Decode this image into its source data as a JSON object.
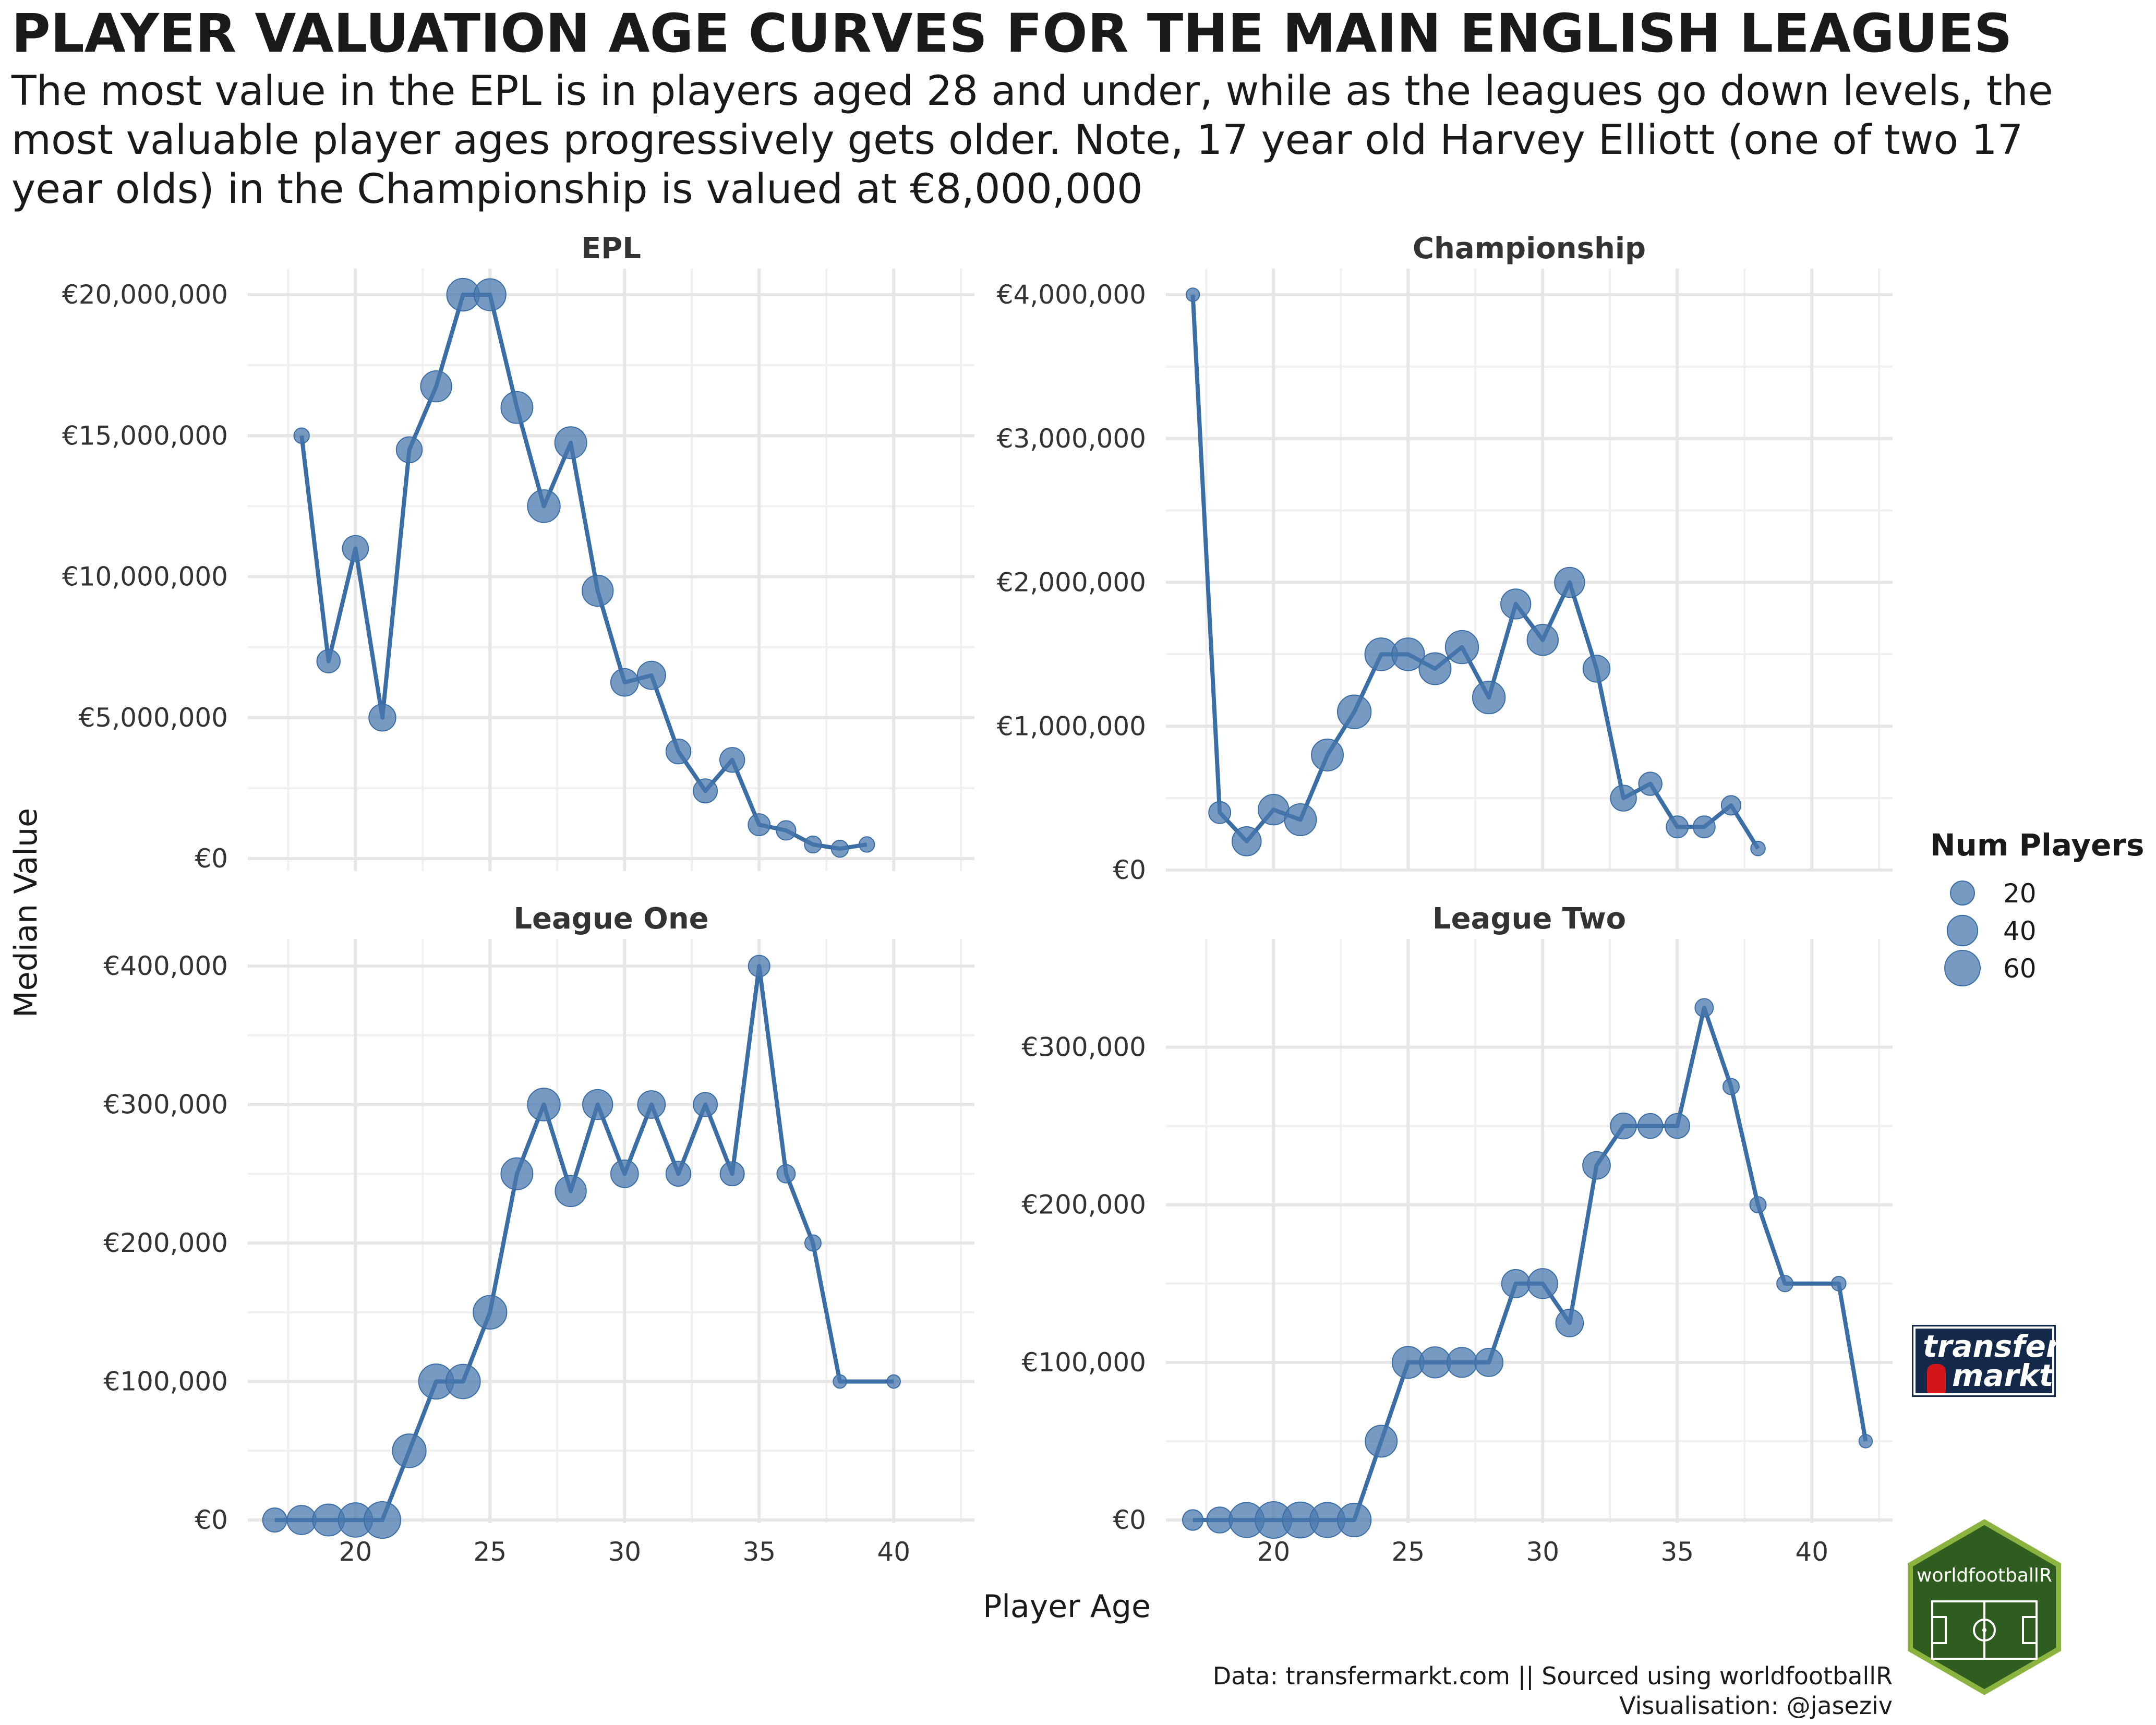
{
  "header": {
    "title": "PLAYER VALUATION AGE CURVES FOR THE MAIN ENGLISH LEAGUES",
    "subtitle": "The most value in the EPL is in players aged 28 and under, while as the leagues go down levels, the most valuable player ages progressively gets older. Note, 17 year old Harvey Elliott (one of two 17 year olds) in the Championship is valued at €8,000,000"
  },
  "caption": {
    "line1": "Data: transfermarkt.com || Sourced using worldfootballR",
    "line2": "Visualisation: @jaseziv"
  },
  "logos": {
    "transfermarkt_line1": "transfer",
    "transfermarkt_line2": "markt",
    "worldfootballr": "worldfootballR"
  },
  "colors": {
    "series": "#3a6ea5",
    "point": "#4a78ad",
    "grid": "#e6e6e6",
    "text": "#1a1a1a",
    "strip_text": "#333333",
    "hex_fill": "#2f5c1f",
    "hex_border": "#8ab43f"
  },
  "chart_data": {
    "type": "line",
    "xlabel": "Player Age",
    "ylabel": "Median Value",
    "x_ticks": [
      20,
      25,
      30,
      35,
      40
    ],
    "xlim": [
      16,
      43
    ],
    "grid": true,
    "legend": {
      "title": "Num Players",
      "position": "right",
      "entries": [
        {
          "label": "20",
          "value": 20
        },
        {
          "label": "40",
          "value": 40
        },
        {
          "label": "60",
          "value": 60
        }
      ]
    },
    "panels": [
      {
        "name": "EPL",
        "ylim": [
          0,
          20000000
        ],
        "y_ticks": [
          0,
          5000000,
          10000000,
          15000000,
          20000000
        ],
        "y_tick_labels": [
          "€0",
          "€5,000,000",
          "€10,000,000",
          "€15,000,000",
          "€20,000,000"
        ],
        "points": [
          {
            "age": 18,
            "value": 15000000,
            "n": 4
          },
          {
            "age": 19,
            "value": 7000000,
            "n": 18
          },
          {
            "age": 20,
            "value": 11000000,
            "n": 25
          },
          {
            "age": 21,
            "value": 5000000,
            "n": 28
          },
          {
            "age": 22,
            "value": 14500000,
            "n": 25
          },
          {
            "age": 23,
            "value": 16750000,
            "n": 42
          },
          {
            "age": 24,
            "value": 20000000,
            "n": 48
          },
          {
            "age": 25,
            "value": 20000000,
            "n": 45
          },
          {
            "age": 26,
            "value": 16000000,
            "n": 45
          },
          {
            "age": 27,
            "value": 12500000,
            "n": 48
          },
          {
            "age": 28,
            "value": 14750000,
            "n": 45
          },
          {
            "age": 29,
            "value": 9500000,
            "n": 42
          },
          {
            "age": 30,
            "value": 6250000,
            "n": 30
          },
          {
            "age": 31,
            "value": 6500000,
            "n": 32
          },
          {
            "age": 32,
            "value": 3800000,
            "n": 22
          },
          {
            "age": 33,
            "value": 2400000,
            "n": 20
          },
          {
            "age": 34,
            "value": 3500000,
            "n": 22
          },
          {
            "age": 35,
            "value": 1200000,
            "n": 15
          },
          {
            "age": 36,
            "value": 1000000,
            "n": 10
          },
          {
            "age": 37,
            "value": 500000,
            "n": 6
          },
          {
            "age": 38,
            "value": 350000,
            "n": 6
          },
          {
            "age": 39,
            "value": 500000,
            "n": 4
          }
        ]
      },
      {
        "name": "Championship",
        "ylim": [
          0,
          4000000
        ],
        "y_ticks": [
          0,
          1000000,
          2000000,
          3000000,
          4000000
        ],
        "y_tick_labels": [
          "€0",
          "€1,000,000",
          "€2,000,000",
          "€3,000,000",
          "€4,000,000"
        ],
        "points": [
          {
            "age": 17,
            "value": 4000000,
            "n": 2
          },
          {
            "age": 18,
            "value": 400000,
            "n": 15
          },
          {
            "age": 19,
            "value": 200000,
            "n": 35
          },
          {
            "age": 20,
            "value": 420000,
            "n": 40
          },
          {
            "age": 21,
            "value": 350000,
            "n": 45
          },
          {
            "age": 22,
            "value": 800000,
            "n": 45
          },
          {
            "age": 23,
            "value": 1100000,
            "n": 52
          },
          {
            "age": 24,
            "value": 1500000,
            "n": 48
          },
          {
            "age": 25,
            "value": 1500000,
            "n": 48
          },
          {
            "age": 26,
            "value": 1400000,
            "n": 45
          },
          {
            "age": 27,
            "value": 1550000,
            "n": 50
          },
          {
            "age": 28,
            "value": 1200000,
            "n": 48
          },
          {
            "age": 29,
            "value": 1850000,
            "n": 38
          },
          {
            "age": 30,
            "value": 1600000,
            "n": 42
          },
          {
            "age": 31,
            "value": 2000000,
            "n": 38
          },
          {
            "age": 32,
            "value": 1400000,
            "n": 28
          },
          {
            "age": 33,
            "value": 500000,
            "n": 25
          },
          {
            "age": 34,
            "value": 600000,
            "n": 18
          },
          {
            "age": 35,
            "value": 300000,
            "n": 15
          },
          {
            "age": 36,
            "value": 300000,
            "n": 15
          },
          {
            "age": 37,
            "value": 450000,
            "n": 10
          },
          {
            "age": 38,
            "value": 150000,
            "n": 3
          }
        ]
      },
      {
        "name": "League One",
        "ylim": [
          0,
          400000
        ],
        "y_ticks": [
          0,
          100000,
          200000,
          300000,
          400000
        ],
        "y_tick_labels": [
          "€0",
          "€100,000",
          "€200,000",
          "€300,000",
          "€400,000"
        ],
        "points": [
          {
            "age": 17,
            "value": 0,
            "n": 20
          },
          {
            "age": 18,
            "value": 0,
            "n": 35
          },
          {
            "age": 19,
            "value": 0,
            "n": 45
          },
          {
            "age": 20,
            "value": 0,
            "n": 55
          },
          {
            "age": 21,
            "value": 0,
            "n": 65
          },
          {
            "age": 22,
            "value": 50000,
            "n": 52
          },
          {
            "age": 23,
            "value": 100000,
            "n": 58
          },
          {
            "age": 24,
            "value": 100000,
            "n": 55
          },
          {
            "age": 25,
            "value": 150000,
            "n": 52
          },
          {
            "age": 26,
            "value": 250000,
            "n": 45
          },
          {
            "age": 27,
            "value": 300000,
            "n": 48
          },
          {
            "age": 28,
            "value": 237500,
            "n": 42
          },
          {
            "age": 29,
            "value": 300000,
            "n": 38
          },
          {
            "age": 30,
            "value": 250000,
            "n": 30
          },
          {
            "age": 31,
            "value": 300000,
            "n": 30
          },
          {
            "age": 32,
            "value": 250000,
            "n": 22
          },
          {
            "age": 33,
            "value": 300000,
            "n": 20
          },
          {
            "age": 34,
            "value": 250000,
            "n": 20
          },
          {
            "age": 35,
            "value": 400000,
            "n": 14
          },
          {
            "age": 36,
            "value": 250000,
            "n": 8
          },
          {
            "age": 37,
            "value": 200000,
            "n": 5
          },
          {
            "age": 38,
            "value": 100000,
            "n": 2
          },
          {
            "age": 40,
            "value": 100000,
            "n": 2
          }
        ]
      },
      {
        "name": "League Two",
        "ylim": [
          0,
          325000
        ],
        "y_ticks": [
          0,
          100000,
          200000,
          300000
        ],
        "y_tick_labels": [
          "€0",
          "€100,000",
          "€200,000",
          "€300,000"
        ],
        "points": [
          {
            "age": 17,
            "value": 0,
            "n": 12
          },
          {
            "age": 18,
            "value": 0,
            "n": 25
          },
          {
            "age": 19,
            "value": 0,
            "n": 58
          },
          {
            "age": 20,
            "value": 0,
            "n": 65
          },
          {
            "age": 21,
            "value": 0,
            "n": 62
          },
          {
            "age": 22,
            "value": 0,
            "n": 58
          },
          {
            "age": 23,
            "value": 0,
            "n": 52
          },
          {
            "age": 24,
            "value": 50000,
            "n": 45
          },
          {
            "age": 25,
            "value": 100000,
            "n": 45
          },
          {
            "age": 26,
            "value": 100000,
            "n": 42
          },
          {
            "age": 27,
            "value": 100000,
            "n": 38
          },
          {
            "age": 28,
            "value": 100000,
            "n": 32
          },
          {
            "age": 29,
            "value": 150000,
            "n": 32
          },
          {
            "age": 30,
            "value": 150000,
            "n": 38
          },
          {
            "age": 31,
            "value": 125000,
            "n": 30
          },
          {
            "age": 32,
            "value": 225000,
            "n": 30
          },
          {
            "age": 33,
            "value": 250000,
            "n": 25
          },
          {
            "age": 34,
            "value": 250000,
            "n": 22
          },
          {
            "age": 35,
            "value": 250000,
            "n": 22
          },
          {
            "age": 36,
            "value": 325000,
            "n": 8
          },
          {
            "age": 37,
            "value": 275000,
            "n": 5
          },
          {
            "age": 38,
            "value": 200000,
            "n": 5
          },
          {
            "age": 39,
            "value": 150000,
            "n": 5
          },
          {
            "age": 41,
            "value": 150000,
            "n": 3
          },
          {
            "age": 42,
            "value": 50000,
            "n": 2
          }
        ]
      }
    ]
  }
}
